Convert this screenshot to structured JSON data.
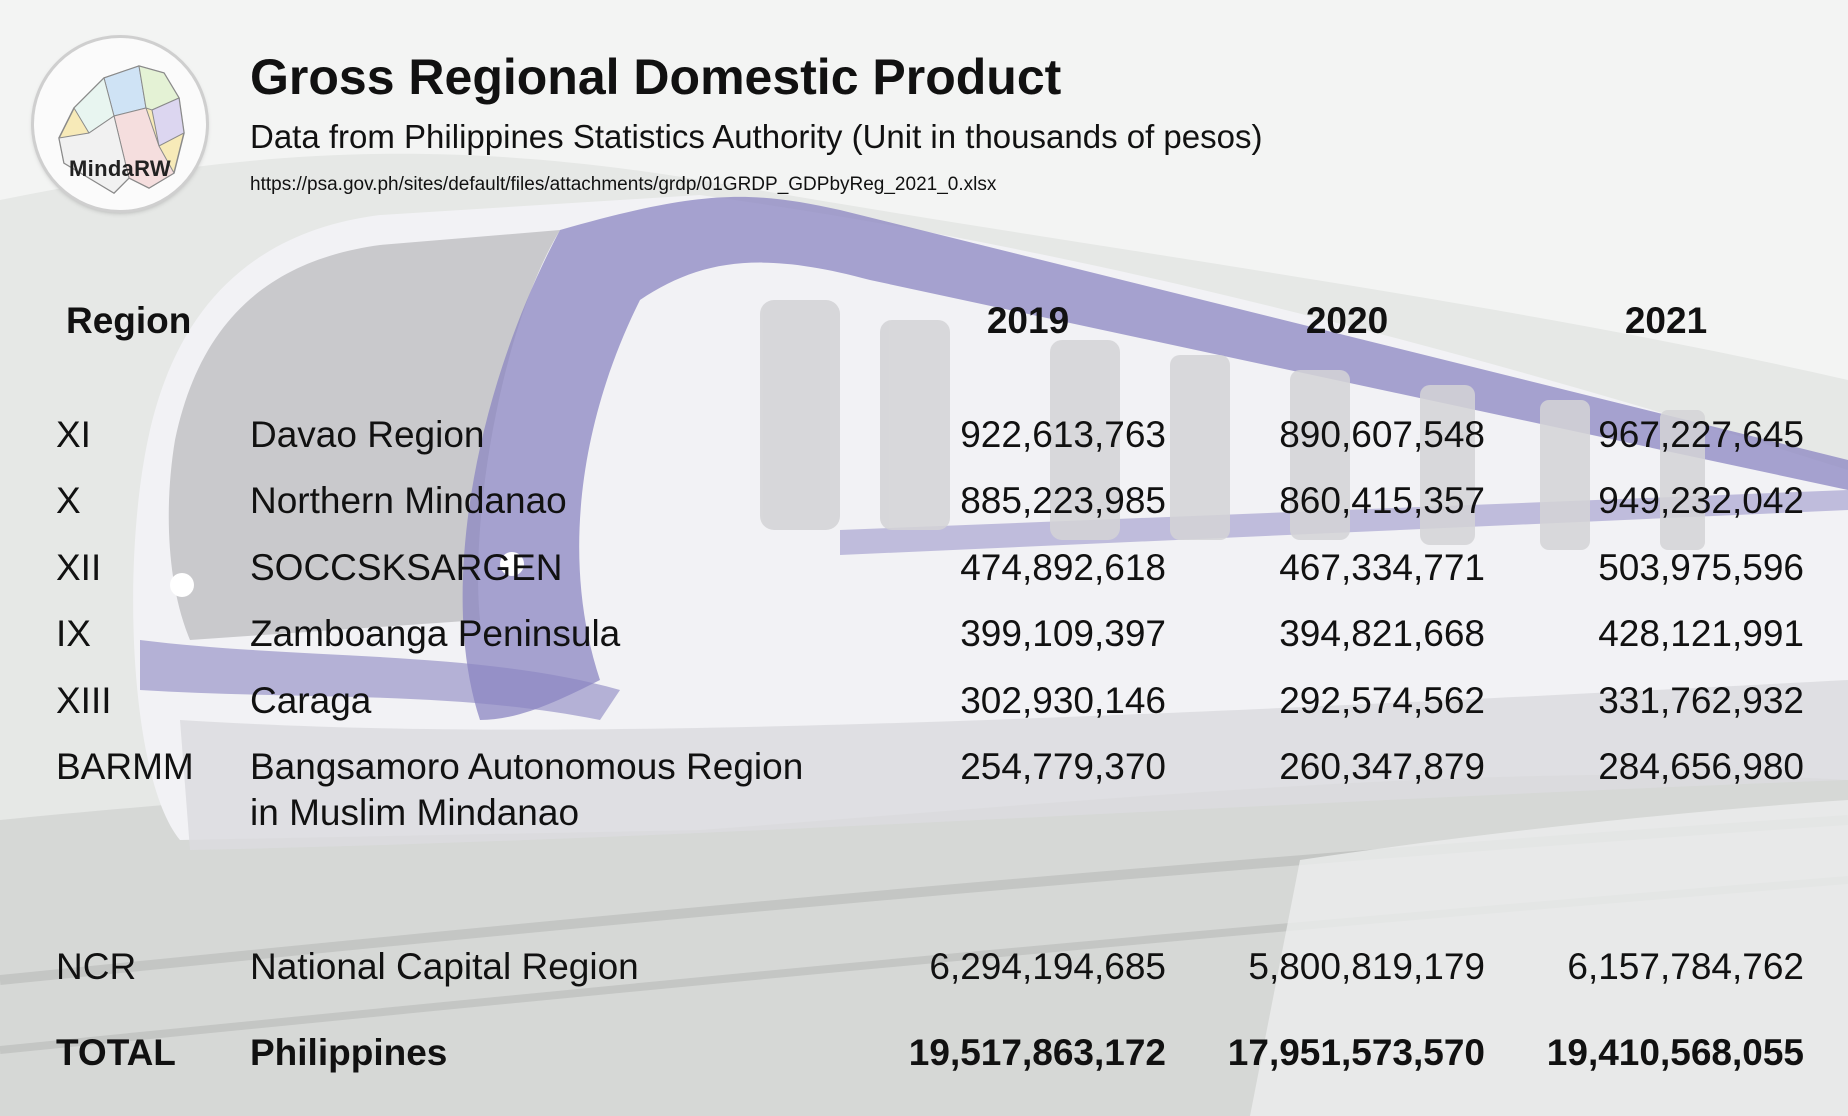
{
  "header": {
    "logo_text": "MindaRW",
    "title": "Gross Regional Domestic Product",
    "subtitle": "Data from Philippines Statistics Authority (Unit in thousands of pesos)",
    "source_url": "https://psa.gov.ph/sites/default/files/attachments/grdp/01GRDP_GDPbyReg_2021_0.xlsx"
  },
  "table": {
    "columns": [
      "Region",
      "2019",
      "2020",
      "2021"
    ],
    "rows": [
      {
        "code": "XI",
        "name": "Davao Region",
        "v2019": "922,613,763",
        "v2020": "890,607,548",
        "v2021": "967,227,645"
      },
      {
        "code": "X",
        "name": "Northern Mindanao",
        "v2019": "885,223,985",
        "v2020": "860,415,357",
        "v2021": "949,232,042"
      },
      {
        "code": "XII",
        "name": "SOCCSKSARGEN",
        "v2019": "474,892,618",
        "v2020": "467,334,771",
        "v2021": "503,975,596"
      },
      {
        "code": "IX",
        "name": "Zamboanga Peninsula",
        "v2019": "399,109,397",
        "v2020": "394,821,668",
        "v2021": "428,121,991"
      },
      {
        "code": "XIII",
        "name": "Caraga",
        "v2019": "302,930,146",
        "v2020": "292,574,562",
        "v2021": "331,762,932"
      },
      {
        "code": "BARMM",
        "name_line1": "Bangsamoro Autonomous Region",
        "name_line2": "in Muslim Mindanao",
        "v2019": "254,779,370",
        "v2020": "260,347,879",
        "v2021": "284,656,980"
      },
      {
        "code": "NCR",
        "name": "National Capital Region",
        "v2019": "6,294,194,685",
        "v2020": "5,800,819,179",
        "v2021": "6,157,784,762"
      }
    ],
    "total": {
      "code": "TOTAL",
      "name": "Philippines",
      "v2019": "19,517,863,172",
      "v2020": "17,951,573,570",
      "v2021": "19,410,568,055"
    }
  },
  "colors": {
    "train_accent": "#8b86c2",
    "train_body": "#f4f4f7",
    "text": "#111111"
  }
}
